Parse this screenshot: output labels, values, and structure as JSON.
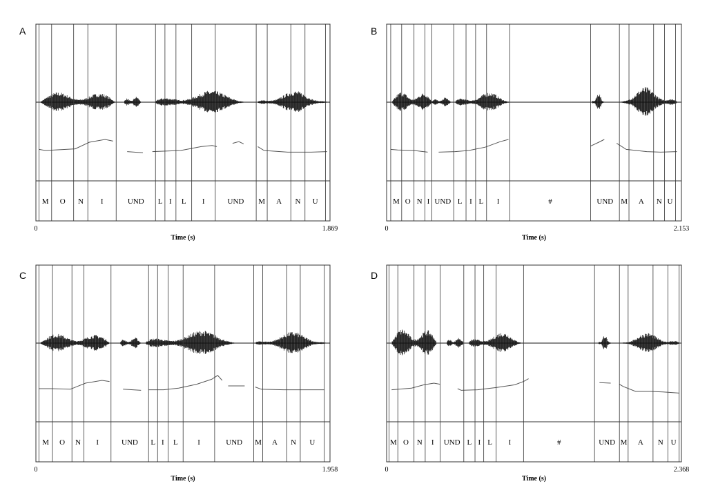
{
  "chart_data": [
    {
      "type": "waveform",
      "panel": "A",
      "xlabel": "Time (s)",
      "xlim": [
        0,
        1.869
      ],
      "x_tick_labels": [
        "0",
        "1.869"
      ],
      "segments": [
        {
          "label": "M",
          "start": 0.02,
          "end": 0.1
        },
        {
          "label": "O",
          "start": 0.1,
          "end": 0.24
        },
        {
          "label": "N",
          "start": 0.24,
          "end": 0.33
        },
        {
          "label": "I",
          "start": 0.33,
          "end": 0.51
        },
        {
          "label": "UND",
          "start": 0.51,
          "end": 0.76
        },
        {
          "label": "L",
          "start": 0.76,
          "end": 0.82
        },
        {
          "label": "I",
          "start": 0.82,
          "end": 0.89
        },
        {
          "label": "L",
          "start": 0.89,
          "end": 0.99
        },
        {
          "label": "I",
          "start": 0.99,
          "end": 1.14
        },
        {
          "label": "UND",
          "start": 1.14,
          "end": 1.4
        },
        {
          "label": "M",
          "start": 1.4,
          "end": 1.47
        },
        {
          "label": "A",
          "start": 1.47,
          "end": 1.62
        },
        {
          "label": "N",
          "start": 1.62,
          "end": 1.71
        },
        {
          "label": "U",
          "start": 1.71,
          "end": 1.84
        }
      ],
      "voiced_regions": [
        [
          0.03,
          0.5,
          0.7
        ],
        [
          0.56,
          0.67,
          0.35
        ],
        [
          0.76,
          1.33,
          0.65
        ],
        [
          1.41,
          1.85,
          0.6
        ]
      ],
      "pitch_segments": [
        [
          [
            0.02,
            0.42
          ],
          [
            0.06,
            0.4
          ],
          [
            0.25,
            0.43
          ],
          [
            0.34,
            0.55
          ],
          [
            0.44,
            0.6
          ],
          [
            0.49,
            0.57
          ]
        ],
        [
          [
            0.58,
            0.38
          ],
          [
            0.68,
            0.36
          ]
        ],
        [
          [
            0.74,
            0.38
          ],
          [
            0.92,
            0.4
          ],
          [
            1.05,
            0.47
          ],
          [
            1.12,
            0.49
          ],
          [
            1.15,
            0.47
          ]
        ],
        [
          [
            1.25,
            0.53
          ],
          [
            1.29,
            0.56
          ],
          [
            1.32,
            0.52
          ]
        ],
        [
          [
            1.41,
            0.47
          ],
          [
            1.45,
            0.4
          ],
          [
            1.6,
            0.37
          ],
          [
            1.75,
            0.37
          ],
          [
            1.85,
            0.38
          ]
        ]
      ]
    },
    {
      "type": "waveform",
      "panel": "B",
      "xlabel": "Time (s)",
      "xlim": [
        0,
        2.153
      ],
      "x_tick_labels": [
        "0",
        "2.153"
      ],
      "segments": [
        {
          "label": "M",
          "start": 0.03,
          "end": 0.11
        },
        {
          "label": "O",
          "start": 0.11,
          "end": 0.2
        },
        {
          "label": "N",
          "start": 0.2,
          "end": 0.28
        },
        {
          "label": "I",
          "start": 0.28,
          "end": 0.33
        },
        {
          "label": "UND",
          "start": 0.33,
          "end": 0.49
        },
        {
          "label": "L",
          "start": 0.49,
          "end": 0.58
        },
        {
          "label": "I",
          "start": 0.58,
          "end": 0.65
        },
        {
          "label": "L",
          "start": 0.65,
          "end": 0.73
        },
        {
          "label": "I",
          "start": 0.73,
          "end": 0.9
        },
        {
          "label": "#",
          "start": 0.9,
          "end": 1.49
        },
        {
          "label": "UND",
          "start": 1.49,
          "end": 1.7
        },
        {
          "label": "M",
          "start": 1.7,
          "end": 1.77
        },
        {
          "label": "A",
          "start": 1.77,
          "end": 1.95
        },
        {
          "label": "N",
          "start": 1.95,
          "end": 2.03
        },
        {
          "label": "U",
          "start": 2.03,
          "end": 2.11
        }
      ],
      "voiced_regions": [
        [
          0.04,
          0.33,
          0.72
        ],
        [
          0.33,
          0.47,
          0.3
        ],
        [
          0.5,
          0.9,
          0.55
        ],
        [
          1.5,
          1.59,
          0.5
        ],
        [
          1.71,
          2.12,
          0.8
        ]
      ],
      "pitch_segments": [
        [
          [
            0.03,
            0.42
          ],
          [
            0.08,
            0.41
          ],
          [
            0.2,
            0.4
          ],
          [
            0.3,
            0.37
          ]
        ],
        [
          [
            0.38,
            0.37
          ],
          [
            0.5,
            0.38
          ],
          [
            0.6,
            0.4
          ],
          [
            0.72,
            0.46
          ],
          [
            0.83,
            0.56
          ],
          [
            0.89,
            0.6
          ]
        ],
        [
          [
            1.49,
            0.48
          ],
          [
            1.55,
            0.55
          ],
          [
            1.59,
            0.6
          ]
        ],
        [
          [
            1.68,
            0.53
          ],
          [
            1.75,
            0.42
          ],
          [
            1.9,
            0.38
          ],
          [
            2.0,
            0.37
          ],
          [
            2.12,
            0.38
          ]
        ]
      ]
    },
    {
      "type": "waveform",
      "panel": "C",
      "xlabel": "Time (s)",
      "xlim": [
        0,
        1.958
      ],
      "x_tick_labels": [
        "0",
        "1.958"
      ],
      "segments": [
        {
          "label": "M",
          "start": 0.02,
          "end": 0.11
        },
        {
          "label": "O",
          "start": 0.11,
          "end": 0.24
        },
        {
          "label": "N",
          "start": 0.24,
          "end": 0.32
        },
        {
          "label": "I",
          "start": 0.32,
          "end": 0.5
        },
        {
          "label": "UND",
          "start": 0.5,
          "end": 0.75
        },
        {
          "label": "L",
          "start": 0.75,
          "end": 0.81
        },
        {
          "label": "I",
          "start": 0.81,
          "end": 0.88
        },
        {
          "label": "L",
          "start": 0.88,
          "end": 0.98
        },
        {
          "label": "I",
          "start": 0.98,
          "end": 1.19
        },
        {
          "label": "UND",
          "start": 1.19,
          "end": 1.45
        },
        {
          "label": "M",
          "start": 1.45,
          "end": 1.51
        },
        {
          "label": "A",
          "start": 1.51,
          "end": 1.67
        },
        {
          "label": "N",
          "start": 1.67,
          "end": 1.76
        },
        {
          "label": "U",
          "start": 1.76,
          "end": 1.92
        }
      ],
      "voiced_regions": [
        [
          0.03,
          0.49,
          0.65
        ],
        [
          0.56,
          0.7,
          0.35
        ],
        [
          0.73,
          1.33,
          0.7
        ],
        [
          1.46,
          1.93,
          0.6
        ]
      ],
      "pitch_segments": [
        [
          [
            0.02,
            0.45
          ],
          [
            0.1,
            0.45
          ],
          [
            0.23,
            0.44
          ],
          [
            0.33,
            0.55
          ],
          [
            0.44,
            0.6
          ],
          [
            0.49,
            0.58
          ]
        ],
        [
          [
            0.58,
            0.44
          ],
          [
            0.7,
            0.42
          ]
        ],
        [
          [
            0.75,
            0.43
          ],
          [
            0.85,
            0.43
          ],
          [
            0.95,
            0.46
          ],
          [
            1.07,
            0.53
          ],
          [
            1.17,
            0.62
          ],
          [
            1.21,
            0.69
          ],
          [
            1.24,
            0.6
          ]
        ],
        [
          [
            1.28,
            0.5
          ],
          [
            1.39,
            0.5
          ]
        ],
        [
          [
            1.46,
            0.48
          ],
          [
            1.5,
            0.44
          ],
          [
            1.65,
            0.43
          ],
          [
            1.8,
            0.43
          ],
          [
            1.92,
            0.43
          ]
        ]
      ]
    },
    {
      "type": "waveform",
      "panel": "D",
      "xlabel": "Time (s)",
      "xlim": [
        0,
        2.368
      ],
      "x_tick_labels": [
        "0",
        "2.368"
      ],
      "segments": [
        {
          "label": "M",
          "start": 0.02,
          "end": 0.09
        },
        {
          "label": "O",
          "start": 0.09,
          "end": 0.22
        },
        {
          "label": "N",
          "start": 0.22,
          "end": 0.31
        },
        {
          "label": "I",
          "start": 0.31,
          "end": 0.43
        },
        {
          "label": "UND",
          "start": 0.43,
          "end": 0.62
        },
        {
          "label": "L",
          "start": 0.62,
          "end": 0.71
        },
        {
          "label": "I",
          "start": 0.71,
          "end": 0.78
        },
        {
          "label": "L",
          "start": 0.78,
          "end": 0.88
        },
        {
          "label": "I",
          "start": 0.88,
          "end": 1.1
        },
        {
          "label": "#",
          "start": 1.1,
          "end": 1.67
        },
        {
          "label": "UND",
          "start": 1.67,
          "end": 1.87
        },
        {
          "label": "M",
          "start": 1.87,
          "end": 1.94
        },
        {
          "label": "A",
          "start": 1.94,
          "end": 2.14
        },
        {
          "label": "N",
          "start": 2.14,
          "end": 2.26
        },
        {
          "label": "U",
          "start": 2.26,
          "end": 2.35
        }
      ],
      "voiced_regions": [
        [
          0.04,
          0.4,
          1.0
        ],
        [
          0.48,
          0.62,
          0.35
        ],
        [
          0.66,
          1.09,
          0.6
        ],
        [
          1.7,
          1.8,
          0.45
        ],
        [
          1.89,
          2.35,
          0.55
        ]
      ],
      "pitch_segments": [
        [
          [
            0.04,
            0.43
          ],
          [
            0.2,
            0.46
          ],
          [
            0.3,
            0.52
          ],
          [
            0.38,
            0.55
          ],
          [
            0.43,
            0.53
          ]
        ],
        [
          [
            0.57,
            0.45
          ],
          [
            0.6,
            0.42
          ],
          [
            0.73,
            0.43
          ],
          [
            0.88,
            0.47
          ],
          [
            1.03,
            0.52
          ],
          [
            1.1,
            0.58
          ],
          [
            1.14,
            0.63
          ]
        ],
        [
          [
            1.71,
            0.56
          ],
          [
            1.8,
            0.55
          ]
        ],
        [
          [
            1.87,
            0.53
          ],
          [
            1.9,
            0.49
          ],
          [
            2.0,
            0.4
          ],
          [
            2.12,
            0.4
          ],
          [
            2.22,
            0.39
          ],
          [
            2.35,
            0.37
          ]
        ]
      ]
    }
  ],
  "panel_labels": [
    "A",
    "B",
    "C",
    "D"
  ],
  "colors": {
    "waveform": "#111111",
    "pitch": "#555555",
    "boundary": "#333333",
    "frame": "#333333"
  }
}
